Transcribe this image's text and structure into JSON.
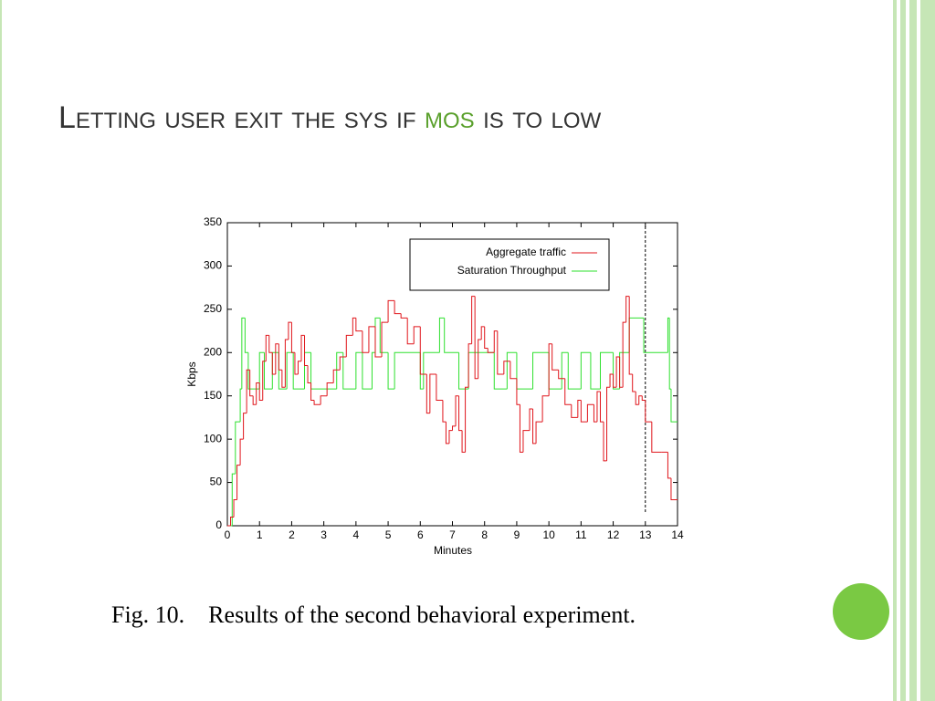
{
  "slide": {
    "title_before": "Letting user exit the sys if",
    "title_highlight": "mos",
    "title_after": "is to low",
    "caption": "Fig. 10.    Results of the second behavioral experiment."
  },
  "chart_data": {
    "type": "line",
    "step": true,
    "xlabel": "Minutes",
    "ylabel": "Kbps",
    "xlim": [
      0,
      14
    ],
    "xticks": [
      0,
      1,
      2,
      3,
      4,
      5,
      6,
      7,
      8,
      9,
      10,
      11,
      12,
      13,
      14
    ],
    "ylim": [
      0,
      350
    ],
    "yticks": [
      0,
      50,
      100,
      150,
      200,
      250,
      300,
      350
    ],
    "vlines": [
      13
    ],
    "legend": "top-right",
    "series": [
      {
        "name": "Aggregate traffic",
        "color": "#e0151b",
        "x": [
          0,
          0.1,
          0.2,
          0.3,
          0.4,
          0.5,
          0.6,
          0.7,
          0.8,
          0.9,
          1.0,
          1.1,
          1.2,
          1.3,
          1.4,
          1.5,
          1.6,
          1.7,
          1.8,
          1.9,
          2.0,
          2.1,
          2.2,
          2.3,
          2.4,
          2.5,
          2.6,
          2.7,
          2.9,
          3.1,
          3.3,
          3.5,
          3.7,
          3.9,
          4.0,
          4.2,
          4.4,
          4.6,
          4.8,
          5.0,
          5.2,
          5.4,
          5.6,
          5.8,
          6.0,
          6.2,
          6.3,
          6.5,
          6.7,
          6.8,
          6.9,
          7.0,
          7.1,
          7.2,
          7.3,
          7.4,
          7.5,
          7.6,
          7.7,
          7.8,
          7.9,
          8.0,
          8.1,
          8.3,
          8.4,
          8.6,
          8.8,
          9.0,
          9.1,
          9.2,
          9.4,
          9.5,
          9.6,
          9.8,
          10.0,
          10.1,
          10.3,
          10.5,
          10.7,
          10.9,
          11.0,
          11.2,
          11.4,
          11.5,
          11.6,
          11.7,
          11.8,
          11.9,
          12.0,
          12.1,
          12.2,
          12.3,
          12.4,
          12.5,
          12.6,
          12.7,
          12.8,
          12.9,
          13.0,
          13.2,
          13.5,
          13.7,
          13.8
        ],
        "values": [
          0,
          10,
          30,
          70,
          100,
          130,
          180,
          150,
          140,
          165,
          145,
          190,
          220,
          200,
          175,
          210,
          180,
          160,
          215,
          235,
          200,
          175,
          190,
          220,
          185,
          165,
          145,
          140,
          150,
          165,
          180,
          195,
          220,
          240,
          225,
          200,
          230,
          195,
          235,
          260,
          245,
          240,
          210,
          230,
          175,
          130,
          175,
          145,
          120,
          95,
          110,
          115,
          150,
          110,
          85,
          160,
          210,
          265,
          170,
          215,
          230,
          205,
          200,
          225,
          175,
          190,
          170,
          140,
          85,
          110,
          135,
          95,
          120,
          150,
          210,
          180,
          170,
          140,
          125,
          145,
          120,
          140,
          120,
          155,
          120,
          75,
          160,
          175,
          160,
          195,
          160,
          235,
          265,
          175,
          155,
          140,
          150,
          145,
          120,
          85,
          85,
          55,
          30
        ]
      },
      {
        "name": "Saturation Throughput",
        "color": "#2ee02e",
        "x": [
          0,
          0.15,
          0.25,
          0.4,
          0.45,
          0.55,
          0.65,
          1.0,
          1.15,
          1.4,
          1.6,
          1.85,
          2.05,
          2.4,
          2.6,
          3.4,
          3.6,
          4.0,
          4.2,
          4.5,
          4.6,
          4.75,
          5.0,
          5.2,
          6.0,
          6.1,
          6.6,
          6.75,
          7.2,
          7.5,
          8.3,
          8.7,
          9.0,
          9.5,
          10.0,
          10.4,
          10.6,
          11.0,
          11.3,
          11.6,
          12.0,
          12.2,
          12.5,
          12.95,
          13.7,
          13.75,
          13.8
        ],
        "values": [
          0,
          60,
          120,
          158,
          240,
          200,
          158,
          200,
          158,
          200,
          158,
          200,
          158,
          200,
          158,
          200,
          158,
          200,
          158,
          200,
          240,
          200,
          158,
          200,
          158,
          200,
          240,
          200,
          158,
          200,
          158,
          200,
          158,
          200,
          158,
          200,
          158,
          200,
          158,
          200,
          158,
          200,
          240,
          200,
          240,
          158,
          120
        ]
      }
    ]
  }
}
